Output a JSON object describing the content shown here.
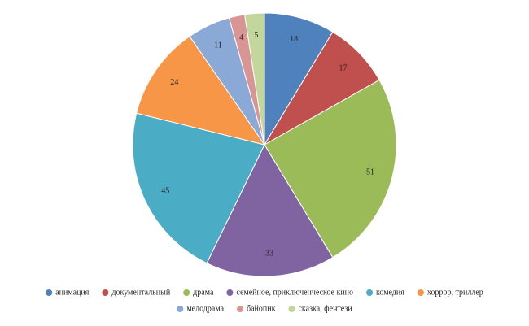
{
  "chart_data": {
    "type": "pie",
    "categories": [
      "анимация",
      "документальный",
      "драма",
      "семейное, приключенческое кино",
      "комедия",
      "хоррор, триллер",
      "мелодрама",
      "байопик",
      "сказка, фентези"
    ],
    "values": [
      18,
      17,
      51,
      33,
      45,
      24,
      11,
      4,
      5
    ],
    "colors": [
      "#4f81bd",
      "#c0504d",
      "#9bbb59",
      "#8064a2",
      "#4bacc6",
      "#f79646",
      "#8aa9d6",
      "#d99594",
      "#c3d69b"
    ],
    "legend": "bottom"
  }
}
